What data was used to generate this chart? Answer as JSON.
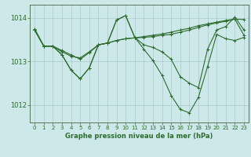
{
  "background_color": "#cce8e8",
  "grid_color": "#aacccc",
  "line_color": "#2d6b2d",
  "title": "Graphe pression niveau de la mer (hPa)",
  "xlim": [
    -0.5,
    23.5
  ],
  "ylim": [
    1011.6,
    1014.3
  ],
  "yticks": [
    1012,
    1013,
    1014
  ],
  "xticks": [
    0,
    1,
    2,
    3,
    4,
    5,
    6,
    7,
    8,
    9,
    10,
    11,
    12,
    13,
    14,
    15,
    16,
    17,
    18,
    19,
    20,
    21,
    22,
    23
  ],
  "series": [
    [
      1013.75,
      1013.35,
      1013.35,
      1013.25,
      1013.15,
      1013.05,
      1013.2,
      1013.38,
      1013.42,
      1013.48,
      1013.52,
      1013.54,
      1013.57,
      1013.6,
      1013.63,
      1013.67,
      1013.72,
      1013.76,
      1013.82,
      1013.86,
      1013.9,
      1013.94,
      1013.97,
      1013.96
    ],
    [
      1013.72,
      1013.35,
      1013.35,
      1013.15,
      1012.8,
      1012.6,
      1012.85,
      1013.38,
      1013.42,
      1013.95,
      1014.05,
      1013.55,
      1013.38,
      1013.32,
      1013.22,
      1013.05,
      1012.65,
      1012.5,
      1012.4,
      1013.28,
      1013.72,
      1013.8,
      1014.02,
      1013.72
    ],
    [
      1013.72,
      1013.35,
      1013.35,
      1013.15,
      1012.8,
      1012.6,
      1012.85,
      1013.38,
      1013.42,
      1013.95,
      1014.05,
      1013.55,
      1013.28,
      1013.02,
      1012.68,
      1012.22,
      1011.9,
      1011.82,
      1012.18,
      1012.88,
      1013.62,
      1013.52,
      1013.48,
      1013.55
    ],
    [
      1013.72,
      1013.35,
      1013.35,
      1013.22,
      1013.12,
      1013.08,
      1013.22,
      1013.38,
      1013.42,
      1013.48,
      1013.52,
      1013.54,
      1013.55,
      1013.57,
      1013.6,
      1013.62,
      1013.67,
      1013.72,
      1013.78,
      1013.84,
      1013.88,
      1013.92,
      1013.97,
      1013.6
    ]
  ]
}
